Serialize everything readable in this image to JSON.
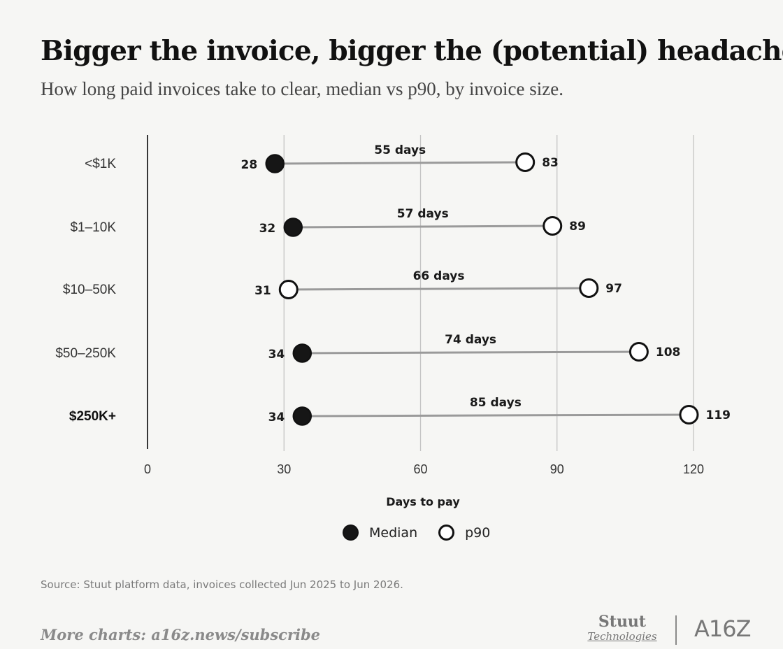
{
  "title": "Bigger the invoice, bigger the (potential) headache",
  "subtitle": "How long paid invoices take to clear, median vs p90, by invoice size.",
  "chart_data": {
    "type": "dumbbell",
    "xlabel": "Days to pay",
    "xlim": [
      0,
      120
    ],
    "x_ticks": [
      0,
      30,
      60,
      90,
      120
    ],
    "grid": "vertical",
    "legend_position": "bottom-center",
    "categories": [
      "<$1K",
      "$1–10K",
      "$10–50K",
      "$50–250K",
      "$250K+"
    ],
    "highlighted_category": "$250K+",
    "series": [
      {
        "name": "Median",
        "values": [
          28,
          32,
          31,
          34,
          34
        ],
        "marker": "filled-circle",
        "color": "#161616"
      },
      {
        "name": "p90",
        "values": [
          83,
          89,
          97,
          108,
          119
        ],
        "marker": "open-circle",
        "color": "#111111"
      }
    ],
    "gap_labels": [
      "55 days",
      "57 days",
      "66 days",
      "74 days",
      "85 days"
    ],
    "connector_color": "#9a9a9a",
    "median_is_open": [
      false,
      false,
      true,
      false,
      false
    ]
  },
  "legend": [
    {
      "label": "Median",
      "marker": "filled-circle"
    },
    {
      "label": "p90",
      "marker": "open-circle"
    }
  ],
  "source": "Source: Stuut platform data, invoices collected Jun 2025 to Jun 2026.",
  "footer": {
    "more": "More charts: a16z.news/subscribe",
    "logo_stuut_line1": "Stuut",
    "logo_stuut_line2": "Technologies",
    "logo_a16z": "A16Z"
  }
}
